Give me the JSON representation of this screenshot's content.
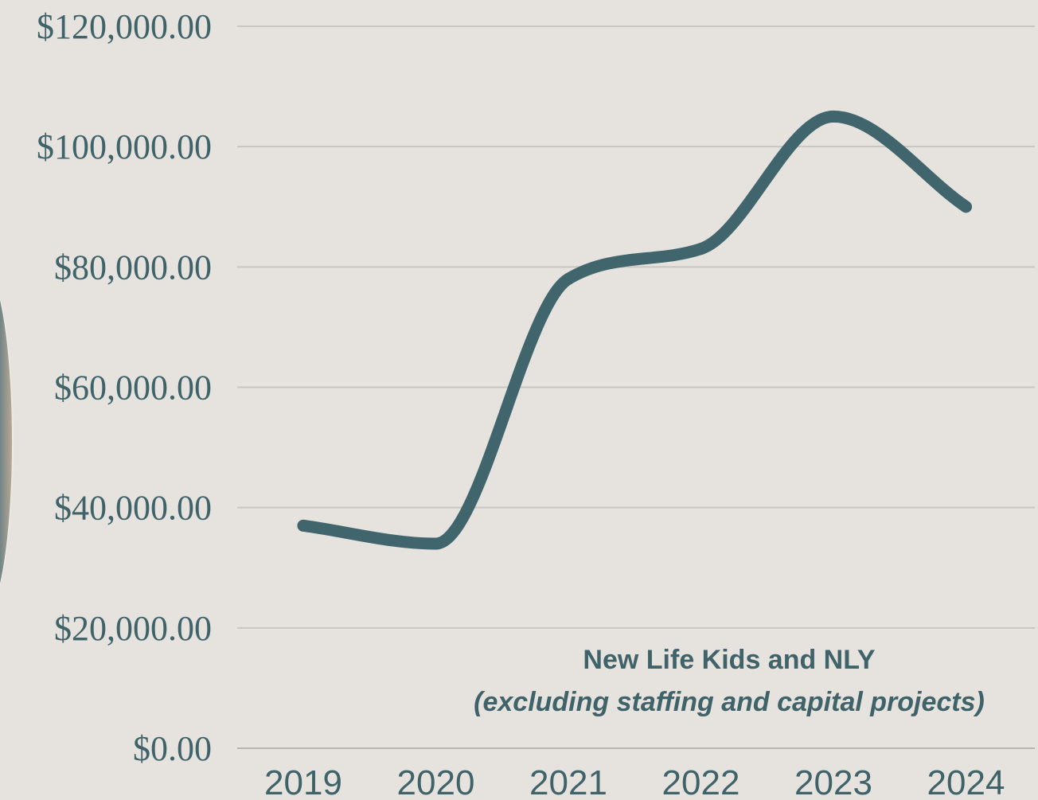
{
  "chart_data": {
    "type": "line",
    "categories": [
      "2019",
      "2020",
      "2021",
      "2022",
      "2023",
      "2024"
    ],
    "series": [
      {
        "values": [
          37000,
          34000,
          78000,
          83000,
          105000,
          90000
        ]
      }
    ],
    "ylim": [
      0,
      120000
    ],
    "yticks": [
      "$0.00",
      "$20,000.00",
      "$40,000.00",
      "$60,000.00",
      "$80,000.00",
      "$100,000.00",
      "$120,000.00"
    ],
    "annotation": {
      "line1": "New Life Kids and NLY",
      "line2": "(excluding staffing and capital projects)"
    },
    "line_color": "#40656c",
    "grid": true,
    "title": "",
    "xlabel": "",
    "ylabel": ""
  }
}
